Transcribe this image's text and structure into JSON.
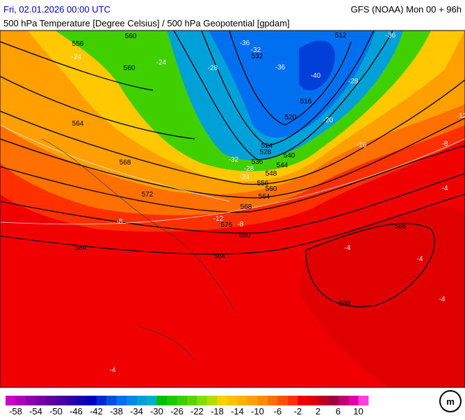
{
  "header": {
    "date": "Fri, 02.01.2026 00:00 UTC",
    "model": "GFS (NOAA) Mon 00 + 96h",
    "title": "500 hPa Temperature [Degree Celsius] / 500 hPa Geopotential [gpdam]"
  },
  "contour_labels": {
    "geopotential": [
      556,
      560,
      560,
      564,
      568,
      572,
      576,
      580,
      584,
      584,
      588,
      588,
      556,
      560,
      564,
      568,
      548,
      544,
      540,
      536,
      532,
      528,
      524,
      520,
      516,
      512
    ],
    "temperature": [
      -36,
      -32,
      -36,
      -28,
      -24,
      -40,
      -28,
      -28,
      -24,
      -16,
      -12,
      -8,
      -8,
      -8,
      -4,
      -4,
      -4,
      -4,
      -4,
      -12,
      -24,
      -36,
      -32,
      -20
    ]
  },
  "colorbar": {
    "labels": [
      -58,
      -54,
      -50,
      -46,
      -42,
      -38,
      -34,
      -30,
      -26,
      -22,
      -18,
      -14,
      -10,
      -6,
      -2,
      2,
      6,
      10
    ],
    "colors": [
      "#cc00cc",
      "#aa00bb",
      "#9000b0",
      "#7800a8",
      "#6000a0",
      "#4800a0",
      "#3000a8",
      "#1800b0",
      "#0000c0",
      "#0028d0",
      "#0050e0",
      "#0070f0",
      "#0088e8",
      "#00a0d8",
      "#00b0c8",
      "#00c000",
      "#18c800",
      "#38d000",
      "#58d800",
      "#80e000",
      "#b0e000",
      "#ffd000",
      "#ffc000",
      "#ffb000",
      "#ffa000",
      "#ff8c00",
      "#ff7000",
      "#ff5000",
      "#ff3000",
      "#f00000",
      "#e00000",
      "#c00020",
      "#a00040",
      "#c00070",
      "#e000a0",
      "#ff40e0"
    ]
  }
}
